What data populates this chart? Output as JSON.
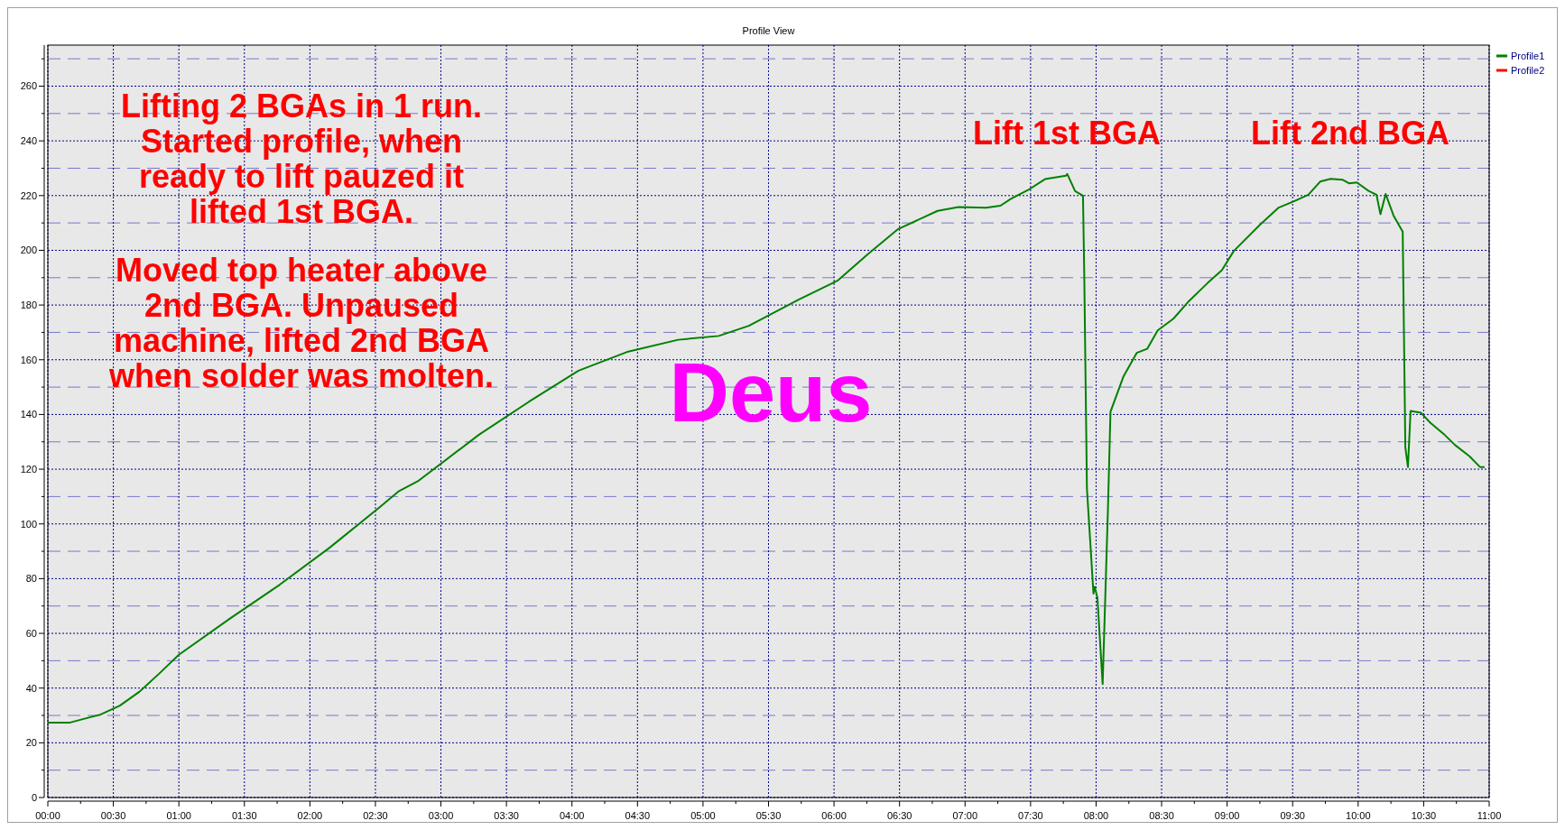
{
  "chart_data": {
    "type": "line",
    "title": "Profile View",
    "x": [
      0,
      0.17,
      0.28,
      0.4,
      0.55,
      0.7,
      0.85,
      1.0,
      1.39,
      1.77,
      2.15,
      2.53,
      2.68,
      2.83,
      3.29,
      3.67,
      4.05,
      4.43,
      4.81,
      5.12,
      5.35,
      5.73,
      6.03,
      6.26,
      6.49,
      6.79,
      6.95,
      7.16,
      7.27,
      7.35,
      7.48,
      7.61,
      7.77,
      7.78,
      7.84,
      7.9,
      7.91,
      7.92,
      7.93,
      7.98,
      7.99,
      8.01,
      8.05,
      8.09,
      8.11,
      8.21,
      8.31,
      8.39,
      8.47,
      8.59,
      8.7,
      8.85,
      8.96,
      9.05,
      9.25,
      9.39,
      9.51,
      9.62,
      9.71,
      9.79,
      9.88,
      9.93,
      9.99,
      10.08,
      10.14,
      10.17,
      10.21,
      10.27,
      10.34,
      10.35,
      10.36,
      10.38,
      10.4,
      10.48,
      10.55,
      10.65,
      10.74,
      10.85,
      10.93,
      10.96
    ],
    "series": [
      {
        "name": "Profile1",
        "color": "#008000",
        "values": [
          27.4,
          27.4,
          28.8,
          30.3,
          33.6,
          38.7,
          45.3,
          52.2,
          65.4,
          77.8,
          91.3,
          106,
          112,
          115.8,
          132.6,
          144.6,
          156,
          163,
          167.3,
          168.7,
          172.4,
          182,
          189,
          198.7,
          207.8,
          214.4,
          215.8,
          215.6,
          216.3,
          218.8,
          222,
          226,
          227.3,
          227.9,
          221.6,
          220,
          190,
          151.5,
          113,
          74.5,
          77,
          73,
          41.5,
          104.7,
          141,
          154,
          162.5,
          164,
          170.7,
          175,
          181,
          188,
          192.7,
          199.7,
          209.3,
          215.5,
          217.9,
          220.3,
          225.1,
          226.1,
          225.8,
          224.5,
          224.8,
          221.7,
          220.3,
          213.2,
          220.6,
          212.7,
          206.8,
          168,
          128,
          120.8,
          141.3,
          140.6,
          137,
          133,
          128.8,
          124.7,
          120.8,
          120.8
        ]
      },
      {
        "name": "Profile2",
        "color": "#ff0000",
        "values": [
          null,
          null,
          null,
          null,
          null,
          null,
          null,
          null,
          null,
          null,
          null,
          null,
          null,
          null,
          null,
          null,
          null,
          null,
          null,
          null,
          null,
          null,
          null,
          null,
          null,
          null,
          null,
          null,
          null,
          null,
          null,
          null,
          null,
          null,
          null,
          null,
          null,
          null,
          null,
          null,
          null,
          null,
          null,
          null,
          null,
          null,
          null,
          null,
          null,
          null,
          null,
          null,
          null,
          null,
          null,
          null,
          null,
          null,
          null,
          null,
          null,
          null,
          null,
          null,
          null,
          null,
          null,
          null,
          null,
          null,
          null,
          null,
          null,
          null,
          null,
          null,
          null,
          null,
          null,
          null
        ]
      }
    ],
    "xlim": [
      0,
      11
    ],
    "ylim": [
      0,
      275
    ],
    "xticks": [
      {
        "value": 0,
        "label": "00:00"
      },
      {
        "value": 0.25,
        "label": null
      },
      {
        "value": 0.5,
        "label": "00:30"
      },
      {
        "value": 0.75,
        "label": null
      },
      {
        "value": 1,
        "label": "01:00"
      },
      {
        "value": 1.25,
        "label": null
      },
      {
        "value": 1.5,
        "label": "01:30"
      },
      {
        "value": 1.75,
        "label": null
      },
      {
        "value": 2,
        "label": "02:00"
      },
      {
        "value": 2.25,
        "label": null
      },
      {
        "value": 2.5,
        "label": "02:30"
      },
      {
        "value": 2.75,
        "label": null
      },
      {
        "value": 3,
        "label": "03:00"
      },
      {
        "value": 3.25,
        "label": null
      },
      {
        "value": 3.5,
        "label": "03:30"
      },
      {
        "value": 3.75,
        "label": null
      },
      {
        "value": 4,
        "label": "04:00"
      },
      {
        "value": 4.25,
        "label": null
      },
      {
        "value": 4.5,
        "label": "04:30"
      },
      {
        "value": 4.75,
        "label": null
      },
      {
        "value": 5,
        "label": "05:00"
      },
      {
        "value": 5.25,
        "label": null
      },
      {
        "value": 5.5,
        "label": "05:30"
      },
      {
        "value": 5.75,
        "label": null
      },
      {
        "value": 6,
        "label": "06:00"
      },
      {
        "value": 6.25,
        "label": null
      },
      {
        "value": 6.5,
        "label": "06:30"
      },
      {
        "value": 6.75,
        "label": null
      },
      {
        "value": 7,
        "label": "07:00"
      },
      {
        "value": 7.25,
        "label": null
      },
      {
        "value": 7.5,
        "label": "07:30"
      },
      {
        "value": 7.75,
        "label": null
      },
      {
        "value": 8,
        "label": "08:00"
      },
      {
        "value": 8.25,
        "label": null
      },
      {
        "value": 8.5,
        "label": "08:30"
      },
      {
        "value": 8.75,
        "label": null
      },
      {
        "value": 9,
        "label": "09:00"
      },
      {
        "value": 9.25,
        "label": null
      },
      {
        "value": 9.5,
        "label": "09:30"
      },
      {
        "value": 9.75,
        "label": null
      },
      {
        "value": 10,
        "label": "10:00"
      },
      {
        "value": 10.25,
        "label": null
      },
      {
        "value": 10.5,
        "label": "10:30"
      },
      {
        "value": 10.75,
        "label": null
      },
      {
        "value": 11,
        "label": "11:00"
      }
    ],
    "yticks": [
      0,
      {
        "value": 10,
        "label": null
      },
      20,
      {
        "value": 30,
        "label": null
      },
      40,
      {
        "value": 50,
        "label": null
      },
      60,
      {
        "value": 70,
        "label": null
      },
      80,
      {
        "value": 90,
        "label": null
      },
      100,
      {
        "value": 110,
        "label": null
      },
      120,
      {
        "value": 130,
        "label": null
      },
      140,
      {
        "value": 150,
        "label": null
      },
      160,
      {
        "value": 170,
        "label": null
      },
      180,
      {
        "value": 190,
        "label": null
      },
      200,
      {
        "value": 210,
        "label": null
      },
      220,
      {
        "value": 230,
        "label": null
      },
      240,
      {
        "value": 250,
        "label": null
      },
      260,
      {
        "value": 270,
        "label": null
      }
    ],
    "grid": true,
    "legend": "top right",
    "line_style": "solid",
    "marker": "none",
    "annotations": [
      "Lifting 2 BGAs in 1 run.\nStarted profile, when\nready to lift pauzed it\nlifted 1st BGA.",
      "Moved top heater above\n2nd BGA. Unpaused\nmachine, lifted 2nd BGA\nwhen solder was molten.",
      "Deus",
      "Lift 1st BGA",
      "Lift 2nd BGA"
    ]
  }
}
